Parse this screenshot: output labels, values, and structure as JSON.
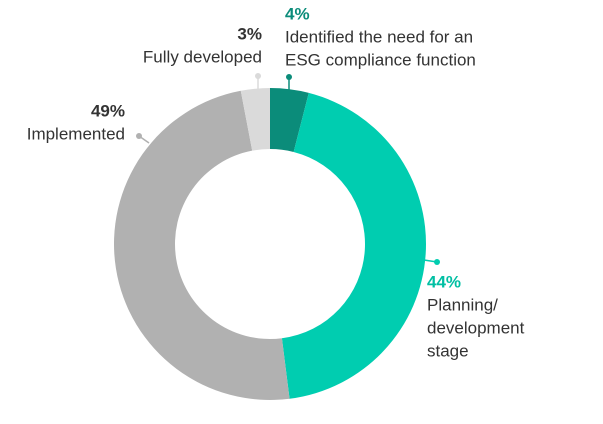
{
  "chart_data": {
    "type": "donut",
    "categories": [
      [
        "Identified the need for an",
        "ESG compliance function"
      ],
      [
        "Planning/",
        "development",
        "stage"
      ],
      [
        "Implemented"
      ],
      [
        "Fully developed"
      ]
    ],
    "values": [
      4,
      44,
      49,
      3
    ],
    "value_labels": [
      "4%",
      "44%",
      "49%",
      "3%"
    ],
    "colors": [
      "#0b8c7a",
      "#00cdb0",
      "#b1b1b1",
      "#dadada"
    ]
  }
}
